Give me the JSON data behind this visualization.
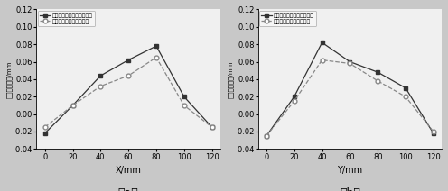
{
  "a_x": [
    0,
    20,
    40,
    60,
    80,
    100,
    120
  ],
  "a_y1": [
    -0.022,
    0.01,
    0.044,
    0.062,
    0.078,
    0.02,
    -0.015
  ],
  "a_y2": [
    -0.015,
    0.01,
    0.032,
    0.044,
    0.065,
    0.01,
    -0.015
  ],
  "b_x": [
    0,
    20,
    40,
    60,
    80,
    100,
    120
  ],
  "b_y1": [
    -0.025,
    0.02,
    0.082,
    0.06,
    0.048,
    0.03,
    -0.022
  ],
  "b_y2": [
    -0.025,
    0.015,
    0.062,
    0.058,
    0.038,
    0.02,
    -0.02
  ],
  "legend1": "未进行优化的轮廓法向误差",
  "legend2": "进行优化的轮廓法向误差",
  "ylabel": "轮廓法向误差/mm",
  "xlabel_a": "X/mm",
  "xlabel_b": "Y/mm",
  "label_a": "a",
  "label_b": "b",
  "ylim": [
    -0.04,
    0.12
  ],
  "yticks": [
    -0.04,
    -0.02,
    0.0,
    0.02,
    0.04,
    0.06,
    0.08,
    0.1,
    0.12
  ],
  "xticks": [
    0,
    20,
    40,
    60,
    80,
    100,
    120
  ],
  "color1": "#333333",
  "color2": "#888888",
  "bg_color": "#f0f0f0",
  "fig_bg": "#c8c8c8"
}
